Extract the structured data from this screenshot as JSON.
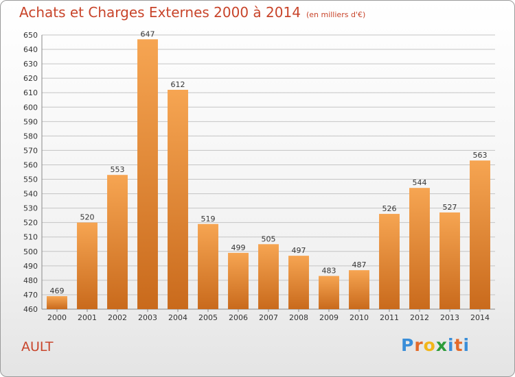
{
  "header": {
    "title": "Achats et Charges Externes 2000 à 2014",
    "unit": "(en milliers d'€)"
  },
  "footer": {
    "commune": "AULT",
    "logo_letters": [
      "P",
      "r",
      "o",
      "x",
      "i",
      "t",
      "i"
    ],
    "logo_colors": [
      "#3a8ed8",
      "#e36a2a",
      "#f2b61a",
      "#2d9c3a",
      "#3a8ed8",
      "#e36a2a",
      "#3a8ed8"
    ]
  },
  "colors": {
    "bar_light": "#f6a552",
    "bar_dark": "#c96a1c",
    "title": "#c8442a",
    "grid": "#c4c4c4",
    "text": "#333333"
  },
  "chart_data": {
    "type": "bar",
    "categories": [
      "2000",
      "2001",
      "2002",
      "2003",
      "2004",
      "2005",
      "2006",
      "2007",
      "2008",
      "2009",
      "2010",
      "2011",
      "2012",
      "2013",
      "2014"
    ],
    "values": [
      469,
      520,
      553,
      647,
      612,
      519,
      499,
      505,
      497,
      483,
      487,
      526,
      544,
      527,
      563
    ],
    "ylim": [
      460,
      650
    ],
    "yticks": [
      460,
      470,
      480,
      490,
      500,
      510,
      520,
      530,
      540,
      550,
      560,
      570,
      580,
      590,
      600,
      610,
      620,
      630,
      640,
      650
    ],
    "grid": true,
    "data_labels": true
  }
}
